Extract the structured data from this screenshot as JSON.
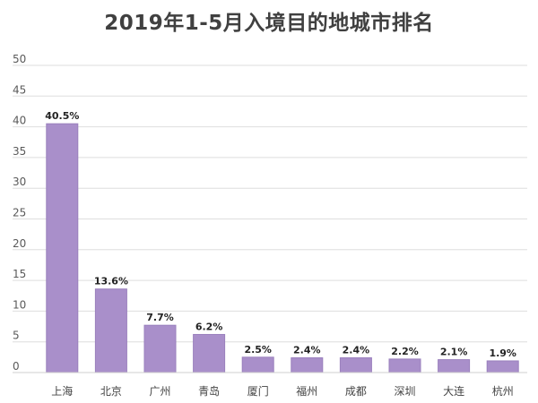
{
  "chart_data": {
    "type": "bar",
    "title": "2019年1-5月入境目的地城市排名",
    "xlabel": "",
    "ylabel": "",
    "categories": [
      "上海",
      "北京",
      "广州",
      "青岛",
      "厦门",
      "福州",
      "成都",
      "深圳",
      "大连",
      "杭州"
    ],
    "values": [
      40.5,
      13.6,
      7.7,
      6.2,
      2.5,
      2.4,
      2.4,
      2.2,
      2.1,
      1.9
    ],
    "value_labels": [
      "40.5%",
      "13.6%",
      "7.7%",
      "6.2%",
      "2.5%",
      "2.4%",
      "2.4%",
      "2.2%",
      "2.1%",
      "1.9%"
    ],
    "yticks": [
      0,
      5,
      10,
      15,
      20,
      25,
      30,
      35,
      40,
      45,
      50
    ],
    "ylim": [
      0,
      50
    ],
    "grid": true,
    "legend": "none",
    "bar_color": "#a98fca",
    "bar_edge_color": "#9a80bd",
    "grid_color": "#dedede"
  }
}
